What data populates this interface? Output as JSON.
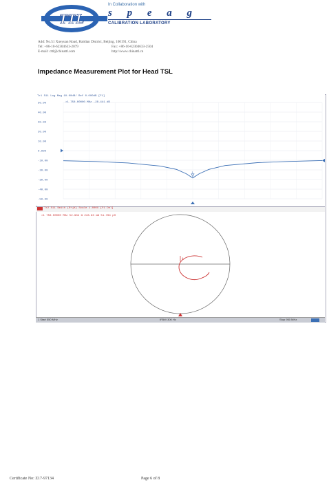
{
  "header": {
    "logo_text": "TTL",
    "collab_text": "In Collaboration with",
    "partner_name": "s p e a g",
    "partner_sub": "CALIBRATION LABORATORY",
    "address_lines": [
      "Add: No.51 Xueyuan Road, Haidian District, Beijing, 100191, China",
      "Tel: +86-10-62304633-2079",
      "Fax: +86-10-62304633-2504",
      "E-mail: cttl@chinattl.com",
      "http://www.chinattl.cn"
    ]
  },
  "title": "Impedance Measurement Plot for Head TSL",
  "plot": {
    "trace1_header": "Tr1 S11 Log Mag 10.00dB/ Ref 0.000dB [F1]",
    "trace1_marker": ">1   750.00000 MHz  -28.441 dB",
    "marker_label": "1",
    "y_ticks": [
      "50.00",
      "40.00",
      "30.00",
      "20.00",
      "10.00",
      "0.000",
      "-10.00",
      "-20.00",
      "-30.00",
      "-40.00",
      "-50.00"
    ],
    "trace2_header": "Tr2 S11 Smith (R+jX) Scale 1.000U [F1 Del]",
    "trace2_marker": ">1  750.00000 MHz  52.934 Ω  243.93 mΩ  51.764 pH",
    "status_start": "1 Start 550 MHz",
    "status_ifbw": "IFBW 300 Hz",
    "status_stop": "Stop 950 MHz"
  },
  "chart_data": {
    "type": "line",
    "title": "",
    "xlabel": "",
    "ylabel": "",
    "x": [
      550,
      600,
      650,
      700,
      725,
      740,
      750,
      760,
      775,
      800,
      850,
      900,
      950
    ],
    "series": [
      {
        "values": [
          -10.5,
          -11.3,
          -12.8,
          -16.0,
          -19.5,
          -24.0,
          -28.441,
          -24.0,
          -19.5,
          -15.5,
          -12.5,
          -11.2,
          -10.3
        ]
      }
    ],
    "ylim": [
      -50,
      50
    ],
    "xlim": [
      550,
      950
    ],
    "grid": true,
    "marker": {
      "x": 750,
      "y": -28.441
    }
  },
  "footer": {
    "certificate": "Certificate No: Z17-97134",
    "page": "Page 6 of 8"
  },
  "colors": {
    "trace": "#3b6fb5",
    "smith": "#c33333",
    "brand_blue": "#1c3f86"
  }
}
